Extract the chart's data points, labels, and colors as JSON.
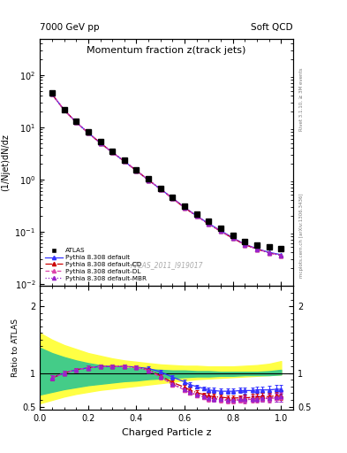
{
  "title": "Momentum fraction z(track jets)",
  "top_left_label": "7000 GeV pp",
  "top_right_label": "Soft QCD",
  "ylabel_main": "(1/Njet)dN/dz",
  "ylabel_ratio": "Ratio to ATLAS",
  "xlabel": "Charged Particle z",
  "watermark": "ATLAS_2011_I919017",
  "right_label_top": "Rivet 3.1.10, ≥ 3M events",
  "right_label_bot": "mcplots.cern.ch [arXiv:1306.3436]",
  "atlas_z": [
    0.05,
    0.1,
    0.15,
    0.2,
    0.25,
    0.3,
    0.35,
    0.4,
    0.45,
    0.5,
    0.55,
    0.6,
    0.65,
    0.7,
    0.75,
    0.8,
    0.85,
    0.9,
    0.95,
    1.0
  ],
  "atlas_y": [
    46,
    22,
    13,
    8.2,
    5.3,
    3.5,
    2.35,
    1.55,
    1.02,
    0.68,
    0.46,
    0.31,
    0.215,
    0.155,
    0.115,
    0.085,
    0.065,
    0.055,
    0.05,
    0.048
  ],
  "pythia_z": [
    0.05,
    0.1,
    0.15,
    0.2,
    0.25,
    0.3,
    0.35,
    0.4,
    0.45,
    0.5,
    0.55,
    0.6,
    0.65,
    0.7,
    0.75,
    0.8,
    0.85,
    0.9,
    0.95,
    1.0
  ],
  "pythia_default_y": [
    43,
    21.5,
    12.5,
    7.8,
    5.0,
    3.3,
    2.22,
    1.47,
    0.97,
    0.65,
    0.44,
    0.29,
    0.2,
    0.142,
    0.104,
    0.076,
    0.057,
    0.047,
    0.04,
    0.036
  ],
  "pythia_cd_y": [
    43,
    21.5,
    12.5,
    7.8,
    5.0,
    3.3,
    2.22,
    1.47,
    0.97,
    0.65,
    0.43,
    0.285,
    0.197,
    0.139,
    0.101,
    0.074,
    0.056,
    0.046,
    0.039,
    0.035
  ],
  "pythia_dl_y": [
    43,
    21.5,
    12.5,
    7.8,
    5.0,
    3.3,
    2.22,
    1.47,
    0.97,
    0.65,
    0.43,
    0.285,
    0.197,
    0.139,
    0.101,
    0.074,
    0.056,
    0.046,
    0.039,
    0.035
  ],
  "pythia_mbr_y": [
    43,
    21.5,
    12.5,
    7.8,
    5.0,
    3.3,
    2.22,
    1.47,
    0.97,
    0.65,
    0.43,
    0.285,
    0.197,
    0.139,
    0.101,
    0.074,
    0.056,
    0.046,
    0.039,
    0.035
  ],
  "ratio_z": [
    0.05,
    0.1,
    0.15,
    0.2,
    0.25,
    0.3,
    0.35,
    0.4,
    0.45,
    0.5,
    0.55,
    0.6,
    0.62,
    0.65,
    0.68,
    0.7,
    0.72,
    0.75,
    0.78,
    0.8,
    0.83,
    0.85,
    0.88,
    0.9,
    0.92,
    0.95,
    0.98,
    1.0
  ],
  "ratio_default": [
    0.93,
    1.0,
    1.05,
    1.08,
    1.1,
    1.1,
    1.1,
    1.09,
    1.07,
    1.02,
    0.94,
    0.87,
    0.83,
    0.8,
    0.77,
    0.75,
    0.74,
    0.73,
    0.73,
    0.73,
    0.74,
    0.74,
    0.74,
    0.75,
    0.75,
    0.75,
    0.76,
    0.76
  ],
  "ratio_cd": [
    0.93,
    1.0,
    1.05,
    1.08,
    1.1,
    1.1,
    1.1,
    1.09,
    1.05,
    0.96,
    0.86,
    0.79,
    0.75,
    0.71,
    0.68,
    0.66,
    0.65,
    0.64,
    0.63,
    0.63,
    0.63,
    0.63,
    0.64,
    0.64,
    0.65,
    0.65,
    0.66,
    0.67
  ],
  "ratio_dl": [
    0.93,
    1.0,
    1.05,
    1.08,
    1.1,
    1.1,
    1.1,
    1.09,
    1.04,
    0.94,
    0.83,
    0.75,
    0.71,
    0.67,
    0.64,
    0.62,
    0.61,
    0.6,
    0.59,
    0.59,
    0.6,
    0.6,
    0.61,
    0.61,
    0.62,
    0.62,
    0.63,
    0.64
  ],
  "ratio_mbr": [
    0.93,
    1.0,
    1.05,
    1.08,
    1.1,
    1.1,
    1.1,
    1.09,
    1.04,
    0.95,
    0.84,
    0.76,
    0.72,
    0.68,
    0.65,
    0.63,
    0.62,
    0.61,
    0.6,
    0.6,
    0.61,
    0.61,
    0.62,
    0.62,
    0.63,
    0.63,
    0.64,
    0.65
  ],
  "ratio_err": [
    0.04,
    0.03,
    0.03,
    0.03,
    0.03,
    0.03,
    0.03,
    0.03,
    0.03,
    0.03,
    0.03,
    0.03,
    0.03,
    0.03,
    0.03,
    0.04,
    0.04,
    0.04,
    0.04,
    0.04,
    0.04,
    0.05,
    0.05,
    0.05,
    0.05,
    0.06,
    0.06,
    0.07
  ],
  "band_z": [
    0.0,
    0.05,
    0.1,
    0.15,
    0.2,
    0.25,
    0.3,
    0.35,
    0.4,
    0.45,
    0.5,
    0.55,
    0.6,
    0.65,
    0.7,
    0.75,
    0.8,
    0.85,
    0.9,
    0.95,
    1.0
  ],
  "band_yellow_lo": [
    0.55,
    0.6,
    0.65,
    0.69,
    0.72,
    0.75,
    0.77,
    0.79,
    0.81,
    0.83,
    0.85,
    0.87,
    0.89,
    0.91,
    0.92,
    0.93,
    0.94,
    0.95,
    0.96,
    0.97,
    0.98
  ],
  "band_yellow_hi": [
    1.6,
    1.5,
    1.42,
    1.36,
    1.3,
    1.26,
    1.22,
    1.19,
    1.17,
    1.15,
    1.13,
    1.12,
    1.11,
    1.11,
    1.1,
    1.1,
    1.1,
    1.11,
    1.12,
    1.14,
    1.18
  ],
  "band_green_lo": [
    0.68,
    0.72,
    0.76,
    0.79,
    0.82,
    0.84,
    0.86,
    0.88,
    0.89,
    0.91,
    0.92,
    0.93,
    0.94,
    0.95,
    0.95,
    0.96,
    0.96,
    0.97,
    0.97,
    0.97,
    0.98
  ],
  "band_green_hi": [
    1.38,
    1.3,
    1.24,
    1.19,
    1.15,
    1.12,
    1.1,
    1.08,
    1.07,
    1.06,
    1.05,
    1.04,
    1.04,
    1.03,
    1.03,
    1.02,
    1.02,
    1.02,
    1.02,
    1.03,
    1.05
  ],
  "color_default": "#3333ff",
  "color_cd": "#cc0000",
  "color_dl": "#dd44aa",
  "color_mbr": "#9922cc",
  "color_atlas": "#000000",
  "color_yellow": "#ffff44",
  "color_green": "#44cc88",
  "ylim_main": [
    0.009,
    500
  ],
  "ylim_ratio": [
    0.45,
    2.3
  ],
  "xlim": [
    0.0,
    1.05
  ]
}
